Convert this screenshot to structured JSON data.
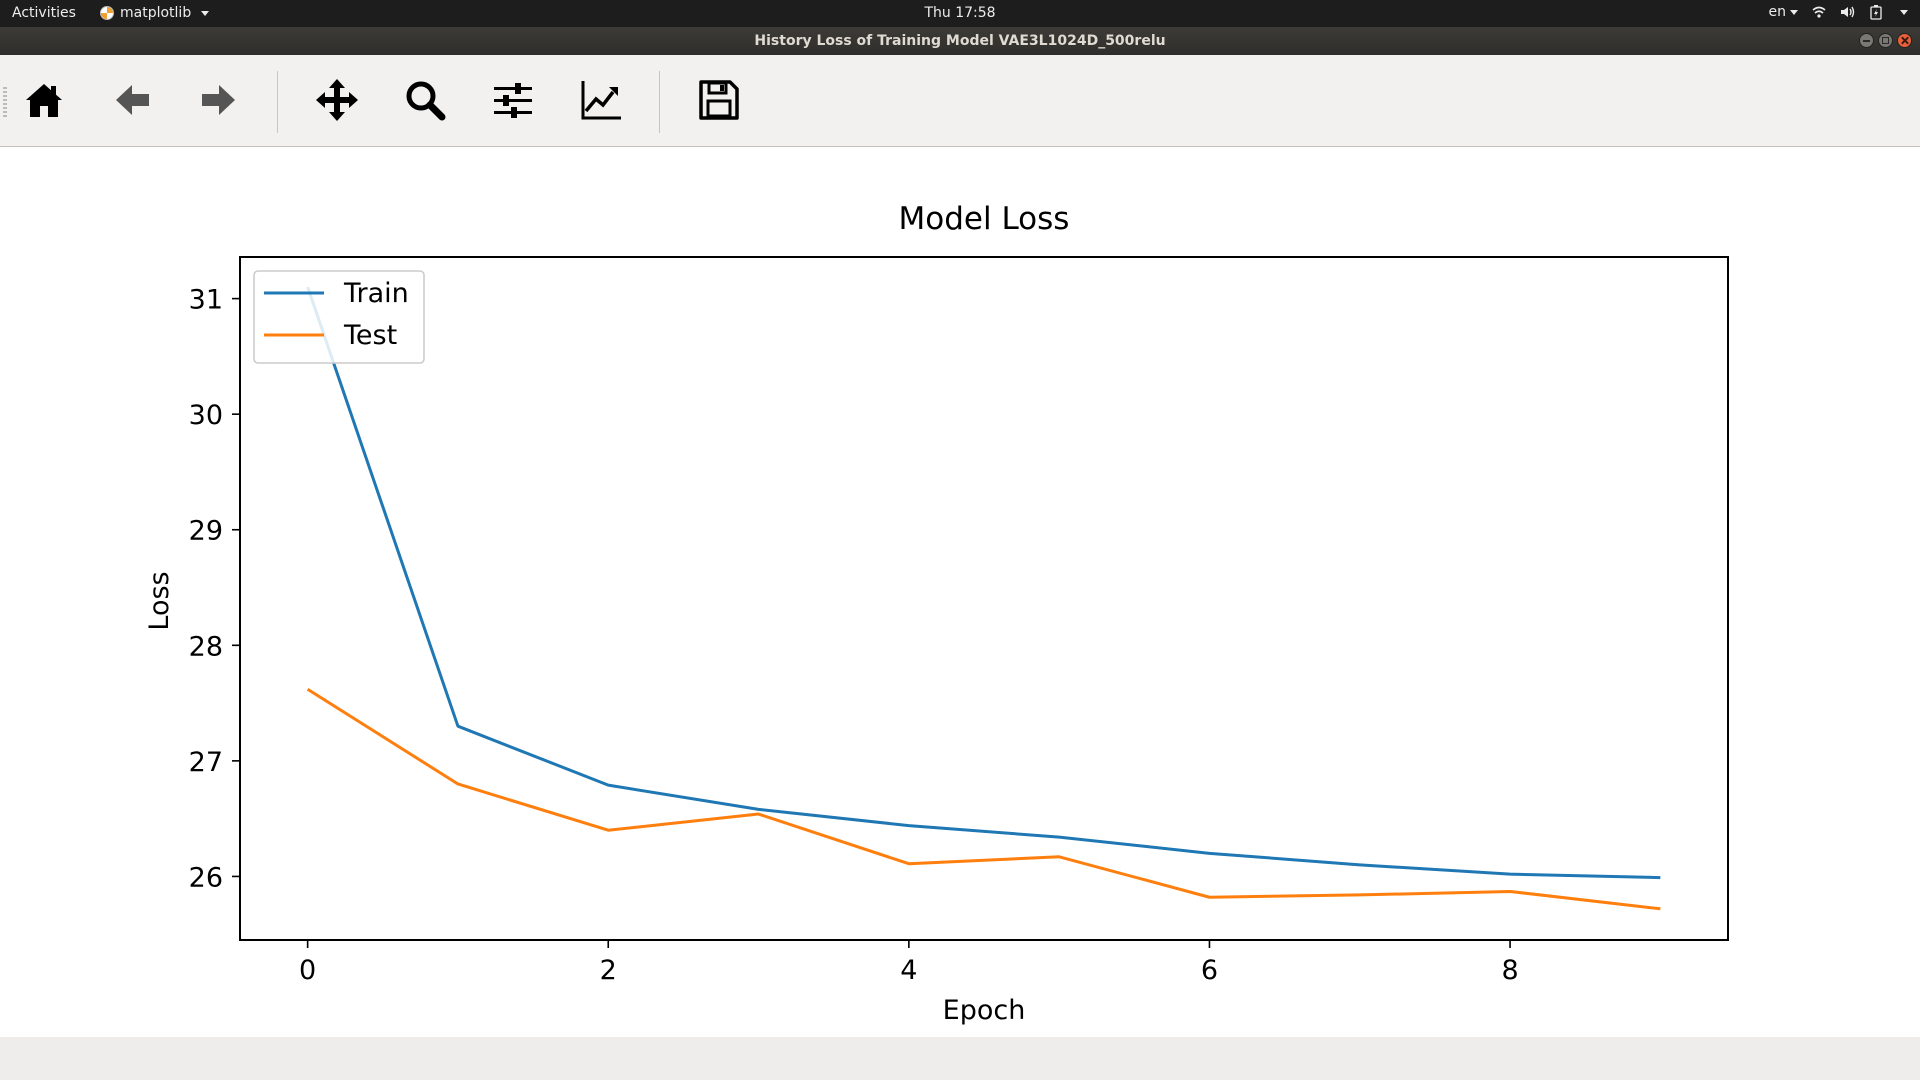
{
  "topbar": {
    "activities": "Activities",
    "app_name": "matplotlib",
    "clock": "Thu 17:58",
    "language": "en"
  },
  "window": {
    "title": "History Loss of Training Model VAE3L1024D_500relu"
  },
  "toolbar": {
    "buttons": [
      {
        "name": "home",
        "icon": "home-icon"
      },
      {
        "name": "back",
        "icon": "arrow-left-icon"
      },
      {
        "name": "forward",
        "icon": "arrow-right-icon"
      },
      {
        "name": "pan",
        "icon": "move-icon"
      },
      {
        "name": "zoom",
        "icon": "magnifier-icon"
      },
      {
        "name": "subplots",
        "icon": "sliders-icon"
      },
      {
        "name": "customize",
        "icon": "line-chart-icon"
      },
      {
        "name": "save",
        "icon": "floppy-disk-icon"
      }
    ]
  },
  "chart_data": {
    "type": "line",
    "title": "Model Loss",
    "xlabel": "Epoch",
    "ylabel": "Loss",
    "x": [
      0,
      1,
      2,
      3,
      4,
      5,
      6,
      7,
      8,
      9
    ],
    "xlim": [
      -0.45,
      9.45
    ],
    "ylim": [
      25.45,
      31.36
    ],
    "xticks": [
      0,
      2,
      4,
      6,
      8
    ],
    "yticks": [
      26,
      27,
      28,
      29,
      30,
      31
    ],
    "grid": false,
    "legend_placement": "top-left",
    "series": [
      {
        "name": "Train",
        "color": "#1f77b4",
        "values": [
          31.1,
          27.3,
          26.79,
          26.58,
          26.44,
          26.34,
          26.2,
          26.1,
          26.02,
          25.99
        ]
      },
      {
        "name": "Test",
        "color": "#ff7f0e",
        "values": [
          27.62,
          26.8,
          26.4,
          26.54,
          26.11,
          26.17,
          25.82,
          25.84,
          25.87,
          25.72
        ]
      }
    ]
  }
}
